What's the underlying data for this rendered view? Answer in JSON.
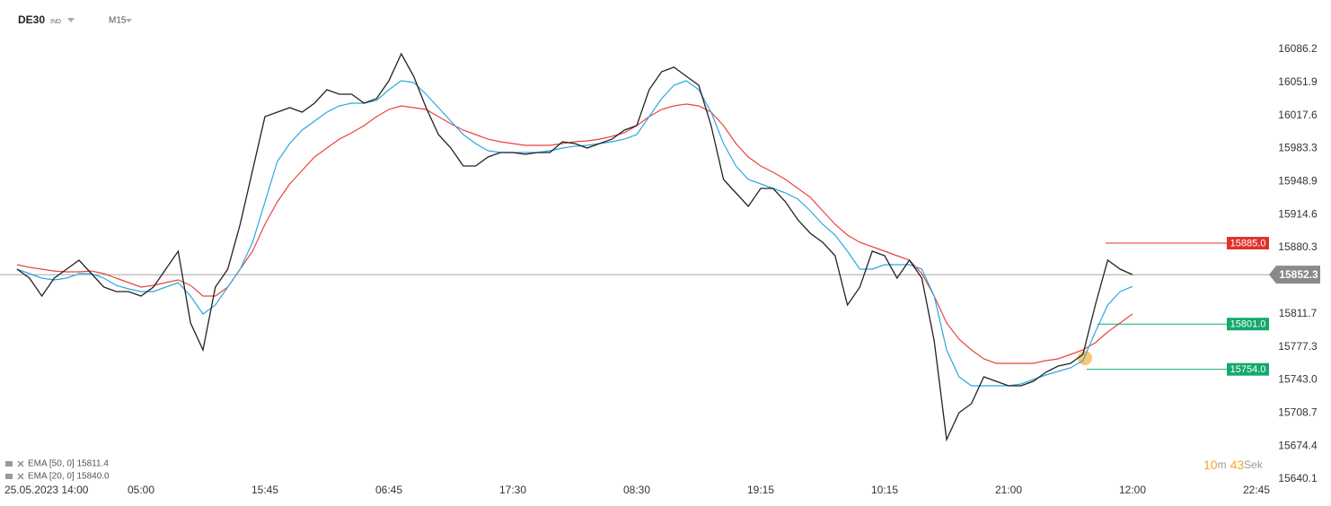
{
  "header": {
    "symbol": "DE30",
    "market": "IND",
    "interval": "M15"
  },
  "chart_data": {
    "type": "line",
    "categories": [
      "25.05.2023 14:00",
      null,
      null,
      null,
      null,
      null,
      null,
      null,
      null,
      null,
      "05:00",
      null,
      null,
      null,
      null,
      null,
      null,
      null,
      null,
      null,
      "15:45",
      null,
      null,
      null,
      null,
      null,
      null,
      null,
      null,
      null,
      "06:45",
      null,
      null,
      null,
      null,
      null,
      null,
      null,
      null,
      null,
      "17:30",
      null,
      null,
      null,
      null,
      null,
      null,
      null,
      null,
      null,
      "08:30",
      null,
      null,
      null,
      null,
      null,
      null,
      null,
      null,
      null,
      "19:15",
      null,
      null,
      null,
      null,
      null,
      null,
      null,
      null,
      null,
      "10:15",
      null,
      null,
      null,
      null,
      null,
      null,
      null,
      null,
      null,
      "21:00",
      null,
      null,
      null,
      null,
      null,
      null,
      null,
      null,
      null,
      "12:00",
      null,
      null,
      null,
      null,
      null,
      null,
      null,
      null,
      null,
      "22:45"
    ],
    "series": [
      {
        "color": "#222222",
        "values": [
          15858.0,
          15848.7,
          15830.1,
          15848.7,
          15858.0,
          15867.3,
          15853.4,
          15839.4,
          15834.7,
          15834.7,
          15830.1,
          15839.4,
          15858.0,
          15876.6,
          15802.1,
          15774.2,
          15839.4,
          15858.0,
          15904.6,
          15960.5,
          16016.3,
          16021.0,
          16025.6,
          16021.0,
          16030.3,
          16044.3,
          16039.6,
          16039.6,
          16030.3,
          16035.0,
          16053.6,
          16081.5,
          16058.2,
          16025.6,
          15997.7,
          15983.7,
          15965.1,
          15965.1,
          15974.4,
          15979.1,
          15979.1,
          15977.2,
          15979.1,
          15979.1,
          15990.3,
          15988.4,
          15983.7,
          15988.4,
          15993.0,
          16002.4,
          16007.0,
          16044.3,
          16062.9,
          16067.6,
          16058.2,
          16048.9,
          16007.0,
          15951.1,
          15937.2,
          15923.2,
          15941.8,
          15941.8,
          15927.9,
          15909.2,
          15895.3,
          15885.9,
          15872.0,
          15820.8,
          15839.4,
          15876.6,
          15872.0,
          15848.7,
          15867.3,
          15848.7,
          15783.5,
          15681.1,
          15709.0,
          15718.3,
          15746.3,
          15741.6,
          15736.9,
          15736.9,
          15741.6,
          15750.9,
          15757.4,
          15760.2,
          15769.5,
          15820.8,
          15867.3,
          15858.0,
          15852.3,
          null,
          null,
          null,
          null,
          null,
          null,
          null,
          null,
          null,
          null
        ]
      },
      {
        "name": "EMA [50, 0] 15811.4",
        "color": "#e8453c",
        "values": [
          15862.7,
          15859.9,
          15858.0,
          15856.1,
          15855.2,
          15855.2,
          15856.1,
          15853.4,
          15848.7,
          15844.0,
          15839.4,
          15841.2,
          15844.0,
          15846.8,
          15841.2,
          15830.1,
          15830.1,
          15839.4,
          15858.0,
          15876.6,
          15904.6,
          15927.9,
          15946.5,
          15960.5,
          15974.4,
          15983.7,
          15993.0,
          15999.6,
          16007.0,
          16016.3,
          16023.8,
          16027.5,
          16025.6,
          16023.8,
          16016.3,
          16008.9,
          16002.4,
          15997.7,
          15993.0,
          15990.3,
          15988.4,
          15986.5,
          15986.5,
          15986.5,
          15988.4,
          15990.3,
          15991.2,
          15993.0,
          15995.8,
          15999.6,
          16007.0,
          16016.3,
          16023.8,
          16027.5,
          16029.4,
          16027.5,
          16021.0,
          16007.0,
          15988.4,
          15974.4,
          15965.1,
          15958.6,
          15951.1,
          15941.8,
          15932.5,
          15918.5,
          15904.6,
          15893.4,
          15885.9,
          15881.3,
          15876.6,
          15872.0,
          15867.3,
          15853.4,
          15830.1,
          15802.1,
          15785.4,
          15774.2,
          15764.9,
          15760.2,
          15760.2,
          15760.2,
          15760.2,
          15763.0,
          15764.9,
          15769.5,
          15774.2,
          15781.6,
          15792.8,
          15802.1,
          15811.4,
          null,
          null,
          null,
          null,
          null,
          null,
          null,
          null,
          null,
          null
        ]
      },
      {
        "name": "EMA [20, 0] 15840.0",
        "color": "#2ba8e0",
        "values": [
          15858.0,
          15853.4,
          15848.7,
          15846.8,
          15848.7,
          15853.4,
          15853.4,
          15848.7,
          15841.2,
          15837.5,
          15834.7,
          15834.7,
          15839.4,
          15844.0,
          15830.1,
          15811.4,
          15820.8,
          15839.4,
          15858.0,
          15885.9,
          15927.9,
          15969.8,
          15988.4,
          16002.4,
          16011.7,
          16021.0,
          16027.5,
          16030.3,
          16030.3,
          16033.1,
          16044.3,
          16053.6,
          16051.7,
          16039.6,
          16025.6,
          16011.7,
          15997.7,
          15988.4,
          15980.9,
          15979.1,
          15979.1,
          15979.1,
          15979.1,
          15980.9,
          15983.7,
          15985.6,
          15986.5,
          15988.4,
          15990.3,
          15993.0,
          15997.7,
          16016.3,
          16035.0,
          16048.9,
          16053.6,
          16044.3,
          16021.0,
          15988.4,
          15965.1,
          15951.1,
          15946.5,
          15941.8,
          15937.2,
          15930.7,
          15918.5,
          15904.6,
          15893.4,
          15876.6,
          15858.0,
          15858.0,
          15862.7,
          15862.7,
          15862.7,
          15858.0,
          15830.1,
          15774.2,
          15746.3,
          15736.9,
          15736.9,
          15736.9,
          15736.9,
          15738.8,
          15743.5,
          15748.1,
          15751.8,
          15755.6,
          15763.0,
          15792.8,
          15820.8,
          15834.7,
          15840.0,
          null,
          null,
          null,
          null,
          null,
          null,
          null,
          null,
          null,
          null
        ]
      }
    ],
    "ylim": [
      15634.5,
      16137.4
    ],
    "yticks": [
      16086.2,
      16051.9,
      16017.6,
      15983.3,
      15948.9,
      15914.6,
      15880.3,
      15811.7,
      15777.3,
      {
        "value": 15743,
        "label": "15743.0"
      },
      15708.7,
      15674.4,
      15640.1
    ],
    "current_price": {
      "value": 15852.3,
      "color": "#8a8a8a"
    },
    "levels": [
      {
        "value": 15885,
        "label": "15885.0",
        "color": "#e0322d"
      },
      {
        "value": 15801,
        "label": "15801.0",
        "color": "#14a96b"
      },
      {
        "value": 15754,
        "label": "15754.0",
        "color": "#14a96b"
      }
    ],
    "grid": false
  },
  "timer": [
    "10",
    "m",
    "43",
    "Sek"
  ]
}
